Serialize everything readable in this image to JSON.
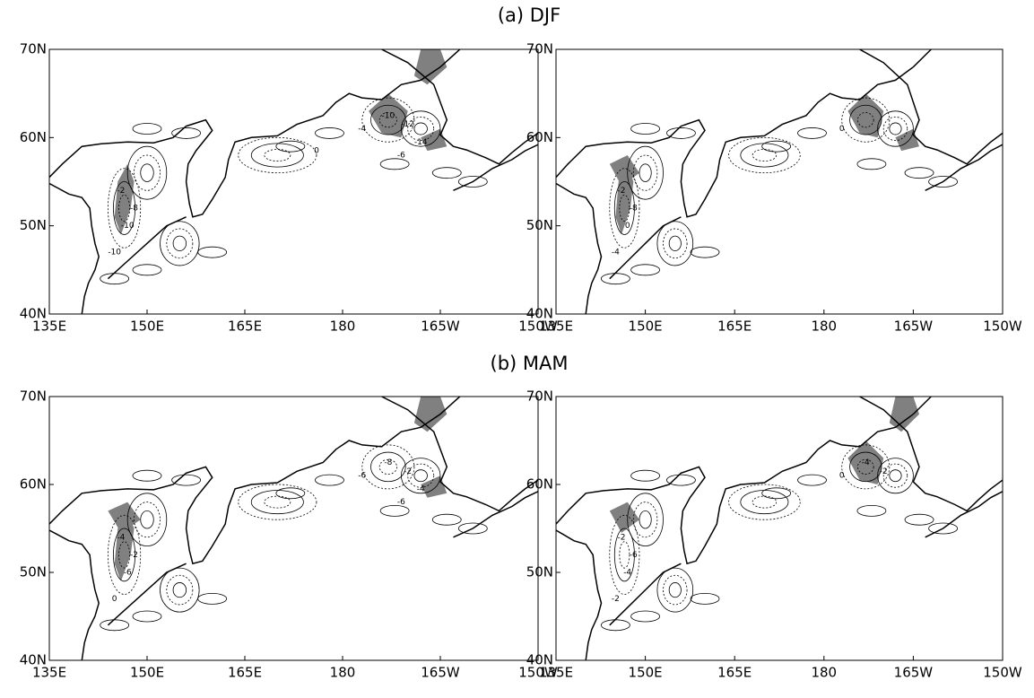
{
  "panels": [
    {
      "title": "(a) DJF",
      "maps": [
        {
          "contour_labels": [
            "-2",
            "-10",
            "-8",
            "-10",
            "-4",
            "-10",
            "-12",
            "-14",
            "-6",
            "0"
          ]
        },
        {
          "contour_labels": [
            "-2",
            "0",
            "-8",
            "-4",
            "0"
          ]
        }
      ]
    },
    {
      "title": "(b) MAM",
      "maps": [
        {
          "contour_labels": [
            "-4",
            "-6",
            "-2",
            "0",
            "-6",
            "-8",
            "-2",
            "-4",
            "-6"
          ]
        },
        {
          "contour_labels": [
            "-2",
            "-4",
            "-6",
            "-2",
            "0",
            "-4",
            "-2"
          ]
        }
      ]
    }
  ],
  "axes": {
    "lat_labels": [
      "70N",
      "60N",
      "50N",
      "40N"
    ],
    "lon_labels": [
      "135E",
      "150E",
      "165E",
      "180",
      "165W",
      "150W"
    ]
  }
}
